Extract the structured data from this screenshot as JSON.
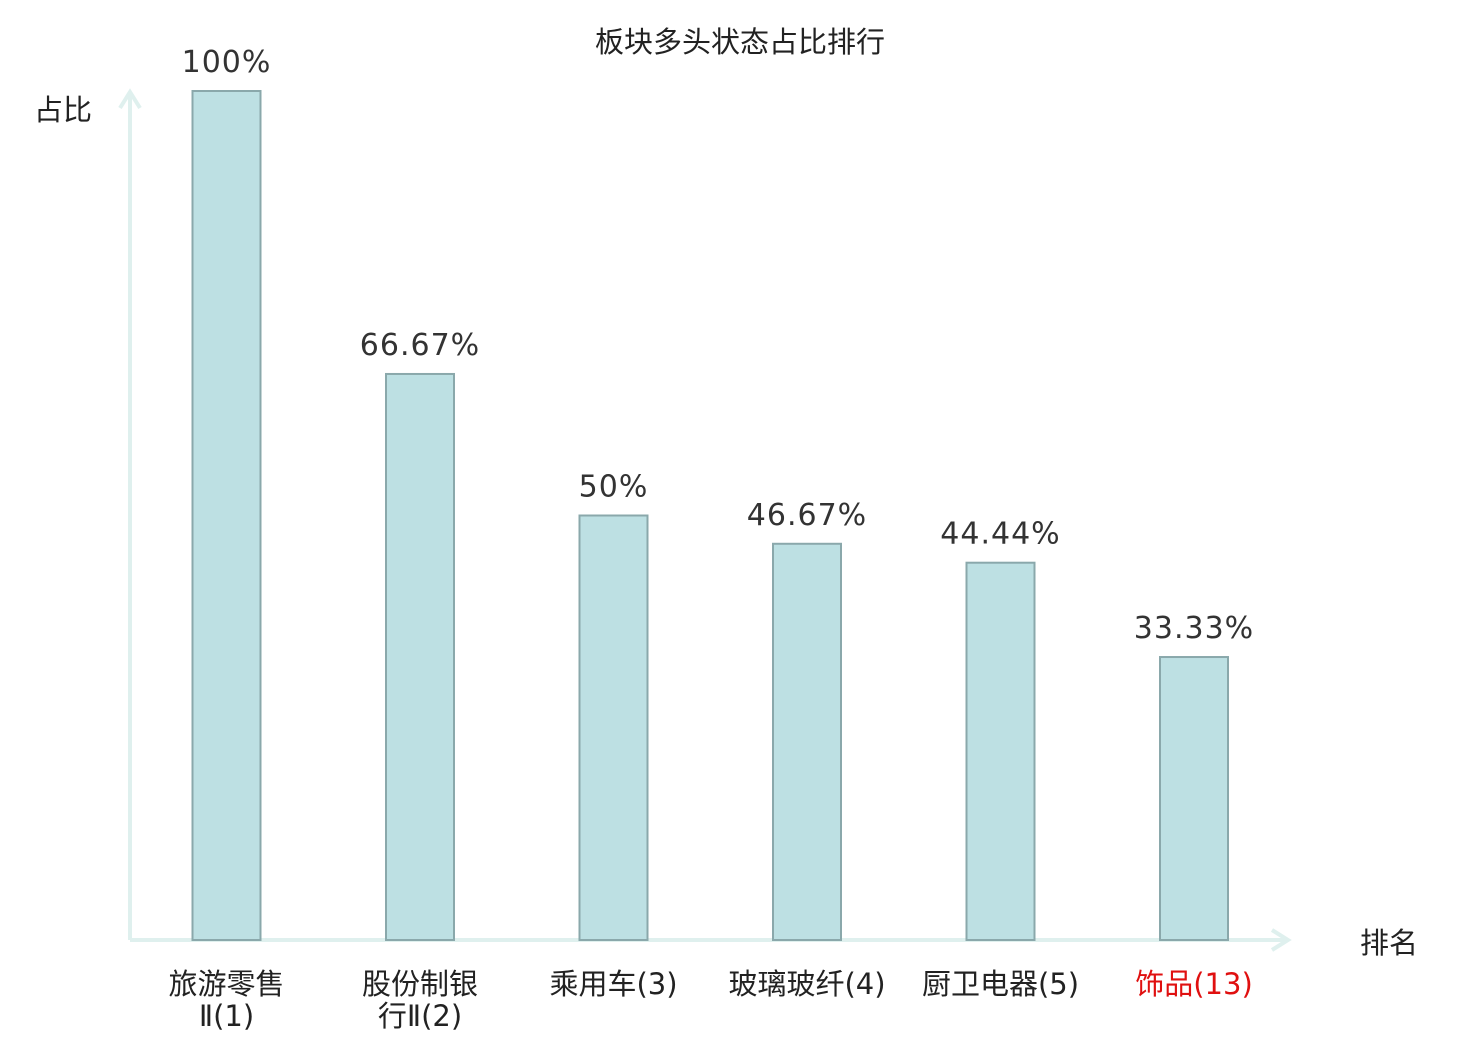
{
  "chart_data": {
    "type": "bar",
    "title": "板块多头状态占比排行",
    "ylabel": "占比",
    "xlabel": "排名",
    "categories": [
      [
        "旅游零售",
        "Ⅱ(1)"
      ],
      [
        "股份制银",
        "行Ⅱ(2)"
      ],
      [
        "乘用车(3)"
      ],
      [
        "玻璃玻纤(4)"
      ],
      [
        "厨卫电器(5)"
      ],
      [
        "饰品(13)"
      ]
    ],
    "values": [
      100,
      66.67,
      50,
      46.67,
      44.44,
      33.33
    ],
    "value_labels": [
      "100%",
      "66.67%",
      "50%",
      "46.67%",
      "44.44%",
      "33.33%"
    ],
    "highlight_index": 5,
    "ylim": [
      0,
      100
    ],
    "grid": false,
    "colors": {
      "bar_fill": "#bde0e3",
      "bar_stroke": "#8aa8ab",
      "axis": "#dff0ee",
      "highlight_text": "#e01010",
      "text": "#222222"
    }
  }
}
